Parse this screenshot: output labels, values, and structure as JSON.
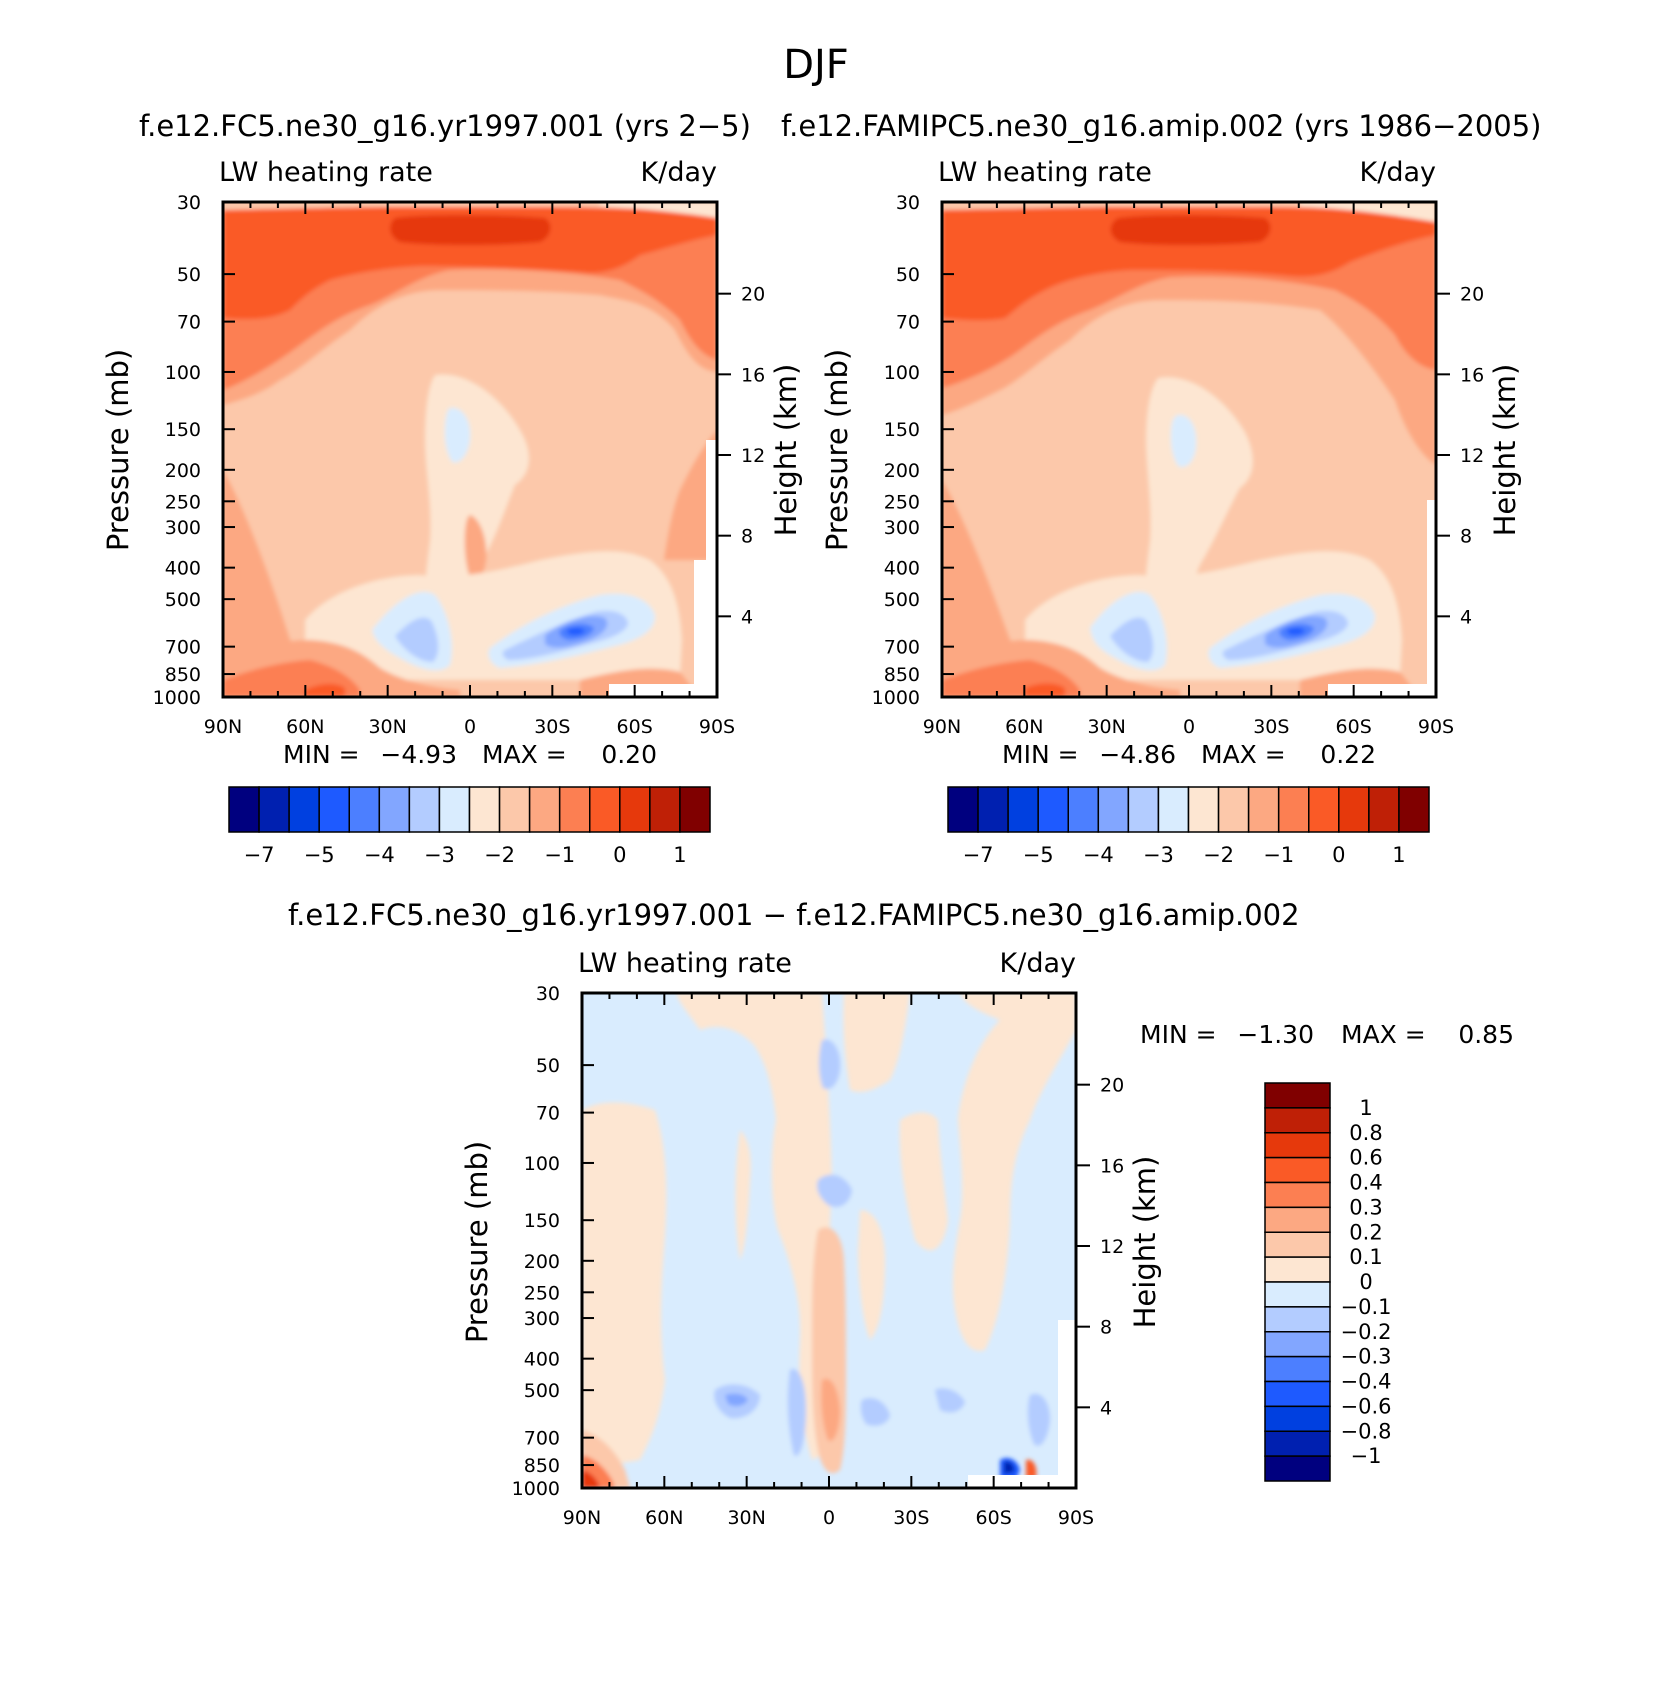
{
  "main_title": "DJF",
  "panels": [
    {
      "id": "p1",
      "title": "f.e12.FC5.ne30_g16.yr1997.001 (yrs 2−5)",
      "left_label": "LW heating rate",
      "right_label": "K/day",
      "y_label": "Pressure (mb)",
      "y2_label": "Height (km)",
      "min_text": "MIN =",
      "min_value": "−4.93",
      "max_text": "MAX =",
      "max_value": "0.20"
    },
    {
      "id": "p2",
      "title": "f.e12.FAMIPC5.ne30_g16.amip.002 (yrs 1986−2005)",
      "left_label": "LW heating rate",
      "right_label": "K/day",
      "y_label": "Pressure (mb)",
      "y2_label": "Height (km)",
      "min_text": "MIN =",
      "min_value": "−4.86",
      "max_text": "MAX =",
      "max_value": "0.22"
    },
    {
      "id": "p3",
      "title": "f.e12.FC5.ne30_g16.yr1997.001 − f.e12.FAMIPC5.ne30_g16.amip.002",
      "left_label": "LW heating rate",
      "right_label": "K/day",
      "y_label": "Pressure (mb)",
      "y2_label": "Height (km)",
      "min_text": "MIN =",
      "min_value": "−1.30",
      "max_text": "MAX =",
      "max_value": "0.85"
    }
  ],
  "axes": {
    "x_ticks": [
      "90N",
      "60N",
      "30N",
      "0",
      "30S",
      "60S",
      "90S"
    ],
    "x_values": [
      90,
      60,
      30,
      0,
      -30,
      -60,
      -90
    ],
    "pressure_ticks": [
      "30",
      "50",
      "70",
      "100",
      "150",
      "200",
      "250",
      "300",
      "400",
      "500",
      "700",
      "850",
      "1000"
    ],
    "pressure_values": [
      30,
      50,
      70,
      100,
      150,
      200,
      250,
      300,
      400,
      500,
      700,
      850,
      1000
    ],
    "height_ticks": [
      "20",
      "16",
      "12",
      "8",
      "4"
    ],
    "height_values": [
      20,
      16,
      12,
      8,
      4
    ],
    "pressure_range": [
      30,
      1000
    ]
  },
  "colorbar_main": {
    "colors": [
      "#00007f",
      "#0020b0",
      "#0040e0",
      "#1e5aff",
      "#4c7fff",
      "#82a6ff",
      "#b3ccff",
      "#d9ecfe",
      "#fde6d2",
      "#fcc8aa",
      "#fca882",
      "#fc7f52",
      "#fa5a26",
      "#e6390c",
      "#bf2006",
      "#800000"
    ],
    "labels": [
      "−7",
      "−5",
      "−4",
      "−3",
      "−2",
      "−1",
      "0",
      "1"
    ],
    "label_after_box": [
      0,
      2,
      4,
      6,
      8,
      10,
      12,
      14
    ]
  },
  "colorbar_diff": {
    "colors_top_to_bottom": [
      "#800000",
      "#bf2006",
      "#e6390c",
      "#fa5a26",
      "#fc7f52",
      "#fca882",
      "#fcc8aa",
      "#fde6d2",
      "#d9ecfe",
      "#b3ccff",
      "#82a6ff",
      "#4c7fff",
      "#1e5aff",
      "#0040e0",
      "#0020b0",
      "#00007f"
    ],
    "labels": [
      "1",
      "0.8",
      "0.6",
      "0.4",
      "0.3",
      "0.2",
      "0.1",
      "0",
      "−0.1",
      "−0.2",
      "−0.3",
      "−0.4",
      "−0.6",
      "−0.8",
      "−1"
    ]
  }
}
